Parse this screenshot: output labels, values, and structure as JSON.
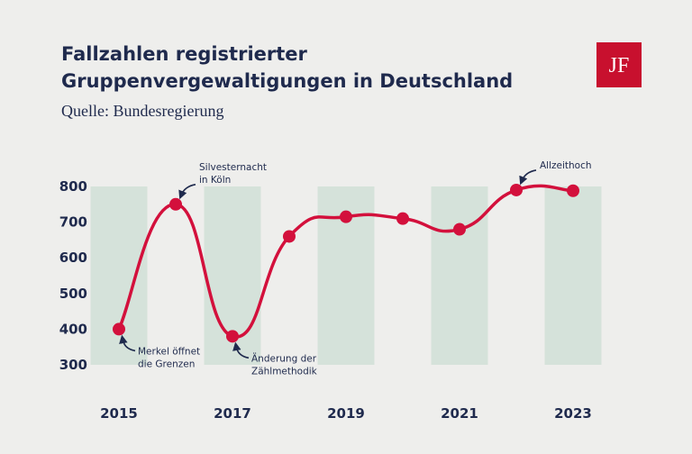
{
  "header": {
    "title": [
      "Fallzahlen registrierter",
      "Gruppenvergewaltigungen in Deutschland"
    ],
    "subtitle": "Quelle: Bundesregierung",
    "logo": "JF"
  },
  "chart_data": {
    "type": "line",
    "x": [
      2015,
      2016,
      2017,
      2018,
      2019,
      2020,
      2021,
      2022,
      2023
    ],
    "series": [
      {
        "color": "#d3103c",
        "values": [
          400,
          750,
          380,
          660,
          715,
          710,
          680,
          790,
          788
        ]
      }
    ],
    "xlim": [
      2014.5,
      2023.5
    ],
    "xticks": [
      2015,
      2017,
      2019,
      2021,
      2023
    ],
    "ylim": [
      300,
      800
    ],
    "yticks": [
      300,
      400,
      500,
      600,
      700,
      800
    ],
    "band_color": "#d5e2da",
    "annotations": [
      {
        "x": 2015,
        "text": [
          "Merkel öffnet",
          "die Grenzen"
        ]
      },
      {
        "x": 2016,
        "text": [
          "Silvesternacht",
          "in Köln"
        ]
      },
      {
        "x": 2017,
        "text": [
          "Änderung der",
          "Zählmethodik"
        ]
      },
      {
        "x": 2022,
        "text": [
          "Allzeithoch"
        ]
      }
    ]
  }
}
